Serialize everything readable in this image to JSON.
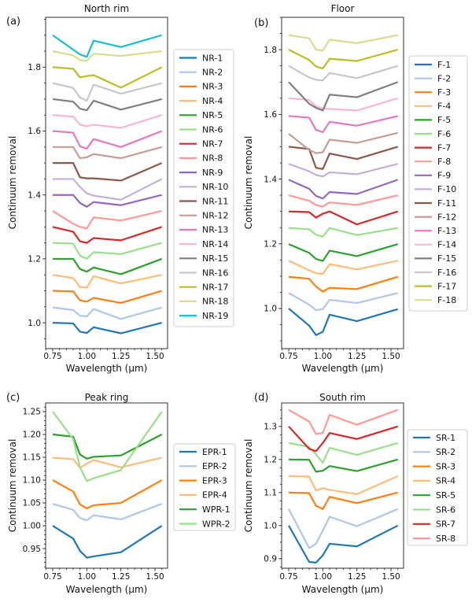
{
  "chart_data": [
    {
      "id": "a",
      "type": "line",
      "panel_label": "(a)",
      "title": "North rim",
      "xlabel": "Wavelength (μm)",
      "ylabel": "Continuum removal",
      "x": [
        0.75,
        0.9,
        0.95,
        1.0,
        1.05,
        1.25,
        1.55
      ],
      "xlim": [
        0.698,
        1.592
      ],
      "ylim": [
        0.919,
        1.956
      ],
      "xticks": [
        0.75,
        1.0,
        1.25,
        1.5
      ],
      "xtick_labels": [
        "0.75",
        "1.00",
        "1.25",
        "1.50"
      ],
      "yticks": [
        1.0,
        1.2,
        1.4,
        1.6,
        1.8
      ],
      "ytick_labels": [
        "1.0",
        "1.2",
        "1.4",
        "1.6",
        "1.8"
      ],
      "grid": false,
      "legend_position": "right",
      "series": [
        {
          "name": "NR-1",
          "color": "#1f77b4",
          "values": [
            1.0,
            0.998,
            0.972,
            0.968,
            0.986,
            0.967,
            1.0
          ]
        },
        {
          "name": "NR-2",
          "color": "#aec7e8",
          "values": [
            1.048,
            1.04,
            1.022,
            1.02,
            1.043,
            1.012,
            1.048
          ]
        },
        {
          "name": "NR-3",
          "color": "#ff7f0e",
          "values": [
            1.1,
            1.098,
            1.07,
            1.066,
            1.078,
            1.062,
            1.1
          ]
        },
        {
          "name": "NR-4",
          "color": "#ffbb78",
          "values": [
            1.15,
            1.14,
            1.112,
            1.11,
            1.146,
            1.123,
            1.15
          ]
        },
        {
          "name": "NR-5",
          "color": "#2ca02c",
          "values": [
            1.2,
            1.2,
            1.168,
            1.16,
            1.173,
            1.152,
            1.2
          ]
        },
        {
          "name": "NR-6",
          "color": "#98df8a",
          "values": [
            1.25,
            1.248,
            1.21,
            1.2,
            1.221,
            1.215,
            1.25
          ]
        },
        {
          "name": "NR-7",
          "color": "#d62728",
          "values": [
            1.3,
            1.285,
            1.255,
            1.25,
            1.265,
            1.258,
            1.3
          ]
        },
        {
          "name": "NR-8",
          "color": "#ff9896",
          "values": [
            1.35,
            1.31,
            1.3,
            1.295,
            1.33,
            1.32,
            1.35
          ]
        },
        {
          "name": "NR-9",
          "color": "#9467bd",
          "values": [
            1.4,
            1.4,
            1.375,
            1.363,
            1.378,
            1.368,
            1.4
          ]
        },
        {
          "name": "NR-10",
          "color": "#c5b0d5",
          "values": [
            1.45,
            1.45,
            1.425,
            1.405,
            1.398,
            1.385,
            1.45
          ]
        },
        {
          "name": "NR-11",
          "color": "#8c564b",
          "values": [
            1.5,
            1.5,
            1.455,
            1.452,
            1.452,
            1.445,
            1.5
          ]
        },
        {
          "name": "NR-12",
          "color": "#c49c94",
          "values": [
            1.55,
            1.55,
            1.515,
            1.518,
            1.528,
            1.515,
            1.55
          ]
        },
        {
          "name": "NR-13",
          "color": "#e377c2",
          "values": [
            1.6,
            1.595,
            1.552,
            1.545,
            1.575,
            1.55,
            1.6
          ]
        },
        {
          "name": "NR-14",
          "color": "#f7b6d2",
          "values": [
            1.65,
            1.645,
            1.62,
            1.615,
            1.62,
            1.61,
            1.65
          ]
        },
        {
          "name": "NR-15",
          "color": "#7f7f7f",
          "values": [
            1.7,
            1.692,
            1.67,
            1.665,
            1.695,
            1.667,
            1.7
          ]
        },
        {
          "name": "NR-16",
          "color": "#c7c7c7",
          "values": [
            1.75,
            1.735,
            1.705,
            1.695,
            1.745,
            1.717,
            1.75
          ]
        },
        {
          "name": "NR-17",
          "color": "#bcbd22",
          "values": [
            1.8,
            1.795,
            1.768,
            1.772,
            1.775,
            1.736,
            1.8
          ]
        },
        {
          "name": "NR-18",
          "color": "#dbdb8d",
          "values": [
            1.85,
            1.837,
            1.822,
            1.82,
            1.842,
            1.835,
            1.85
          ]
        },
        {
          "name": "NR-19",
          "color": "#17becf",
          "values": [
            1.9,
            1.855,
            1.84,
            1.832,
            1.883,
            1.863,
            1.9
          ]
        }
      ]
    },
    {
      "id": "b",
      "type": "line",
      "panel_label": "(b)",
      "title": "Floor",
      "xlabel": "Wavelength (μm)",
      "ylabel": "Continuum removal",
      "x": [
        0.75,
        0.9,
        0.95,
        1.0,
        1.05,
        1.25,
        1.55
      ],
      "xlim": [
        0.698,
        1.592
      ],
      "ylim": [
        0.876,
        1.9
      ],
      "xticks": [
        0.75,
        1.0,
        1.25,
        1.5
      ],
      "xtick_labels": [
        "0.75",
        "1.00",
        "1.25",
        "1.50"
      ],
      "yticks": [
        1.0,
        1.2,
        1.4,
        1.6,
        1.8
      ],
      "ytick_labels": [
        "1.0",
        "1.2",
        "1.4",
        "1.6",
        "1.8"
      ],
      "grid": false,
      "legend_position": "right",
      "series": [
        {
          "name": "F-1",
          "color": "#1f77b4",
          "values": [
            1.0,
            0.947,
            0.918,
            0.928,
            0.981,
            0.961,
            0.998
          ]
        },
        {
          "name": "F-2",
          "color": "#aec7e8",
          "values": [
            1.048,
            1.012,
            0.995,
            0.998,
            1.027,
            1.017,
            1.048
          ]
        },
        {
          "name": "F-3",
          "color": "#ff7f0e",
          "values": [
            1.098,
            1.092,
            1.068,
            1.052,
            1.064,
            1.06,
            1.098
          ]
        },
        {
          "name": "F-4",
          "color": "#ffbb78",
          "values": [
            1.148,
            1.118,
            1.109,
            1.107,
            1.137,
            1.121,
            1.148
          ]
        },
        {
          "name": "F-5",
          "color": "#2ca02c",
          "values": [
            1.199,
            1.172,
            1.153,
            1.147,
            1.179,
            1.162,
            1.199
          ]
        },
        {
          "name": "F-6",
          "color": "#98df8a",
          "values": [
            1.249,
            1.245,
            1.228,
            1.222,
            1.249,
            1.227,
            1.249
          ]
        },
        {
          "name": "F-7",
          "color": "#d62728",
          "values": [
            1.3,
            1.298,
            1.281,
            1.293,
            1.3,
            1.26,
            1.3
          ]
        },
        {
          "name": "F-8",
          "color": "#ff9896",
          "values": [
            1.35,
            1.333,
            1.32,
            1.315,
            1.328,
            1.32,
            1.35
          ]
        },
        {
          "name": "F-9",
          "color": "#9467bd",
          "values": [
            1.398,
            1.37,
            1.348,
            1.34,
            1.36,
            1.354,
            1.398
          ]
        },
        {
          "name": "F-10",
          "color": "#c5b0d5",
          "values": [
            1.447,
            1.424,
            1.413,
            1.408,
            1.421,
            1.415,
            1.447
          ]
        },
        {
          "name": "F-11",
          "color": "#8c564b",
          "values": [
            1.5,
            1.493,
            1.435,
            1.431,
            1.479,
            1.462,
            1.5
          ]
        },
        {
          "name": "F-12",
          "color": "#c49c94",
          "values": [
            1.54,
            1.49,
            1.48,
            1.483,
            1.522,
            1.512,
            1.543
          ]
        },
        {
          "name": "F-13",
          "color": "#e377c2",
          "values": [
            1.595,
            1.59,
            1.552,
            1.545,
            1.577,
            1.565,
            1.595
          ]
        },
        {
          "name": "F-14",
          "color": "#f7b6d2",
          "values": [
            1.65,
            1.645,
            1.625,
            1.618,
            1.617,
            1.612,
            1.65
          ]
        },
        {
          "name": "F-15",
          "color": "#7f7f7f",
          "values": [
            1.7,
            1.633,
            1.62,
            1.612,
            1.661,
            1.653,
            1.7
          ]
        },
        {
          "name": "F-16",
          "color": "#c7c7c7",
          "values": [
            1.75,
            1.714,
            1.707,
            1.705,
            1.728,
            1.712,
            1.75
          ]
        },
        {
          "name": "F-17",
          "color": "#bcbd22",
          "values": [
            1.8,
            1.768,
            1.748,
            1.742,
            1.772,
            1.765,
            1.8
          ]
        },
        {
          "name": "F-18",
          "color": "#dbdb8d",
          "values": [
            1.845,
            1.835,
            1.8,
            1.797,
            1.831,
            1.82,
            1.845
          ]
        }
      ]
    },
    {
      "id": "c",
      "type": "line",
      "panel_label": "(c)",
      "title": "Peak ring",
      "xlabel": "Wavelength (μm)",
      "ylabel": "Continuum removal",
      "x": [
        0.75,
        0.9,
        0.95,
        1.0,
        1.05,
        1.25,
        1.55
      ],
      "xlim": [
        0.698,
        1.592
      ],
      "ylim": [
        0.907,
        1.269
      ],
      "xticks": [
        0.75,
        1.0,
        1.25,
        1.5
      ],
      "xtick_labels": [
        "0.75",
        "1.00",
        "1.25",
        "1.50"
      ],
      "yticks": [
        0.95,
        1.0,
        1.05,
        1.1,
        1.15,
        1.2,
        1.25
      ],
      "ytick_labels": [
        "0.95",
        "1.00",
        "1.05",
        "1.10",
        "1.15",
        "1.20",
        "1.25"
      ],
      "grid": false,
      "legend_position": "right",
      "series": [
        {
          "name": "EPR-1",
          "color": "#1f77b4",
          "values": [
            1.0,
            0.972,
            0.945,
            0.93,
            0.933,
            0.942,
            1.0
          ]
        },
        {
          "name": "EPR-2",
          "color": "#aec7e8",
          "values": [
            1.048,
            1.035,
            1.017,
            1.012,
            1.023,
            1.014,
            1.048
          ]
        },
        {
          "name": "EPR-3",
          "color": "#ff7f0e",
          "values": [
            1.1,
            1.075,
            1.047,
            1.038,
            1.045,
            1.05,
            1.1
          ]
        },
        {
          "name": "EPR-4",
          "color": "#ffbb78",
          "values": [
            1.149,
            1.146,
            1.127,
            1.136,
            1.144,
            1.128,
            1.149
          ]
        },
        {
          "name": "WPR-1",
          "color": "#2ca02c",
          "values": [
            1.2,
            1.195,
            1.156,
            1.147,
            1.151,
            1.154,
            1.2
          ]
        },
        {
          "name": "WPR-2",
          "color": "#98df8a",
          "values": [
            1.25,
            1.19,
            1.128,
            1.098,
            1.104,
            1.122,
            1.25
          ]
        }
      ]
    },
    {
      "id": "d",
      "type": "line",
      "panel_label": "(d)",
      "title": "South rim",
      "xlabel": "Wavelength (μm)",
      "ylabel": "Continuum removal",
      "x": [
        0.75,
        0.9,
        0.95,
        1.0,
        1.05,
        1.25,
        1.55
      ],
      "xlim": [
        0.698,
        1.592
      ],
      "ylim": [
        0.871,
        1.371
      ],
      "xticks": [
        0.75,
        1.0,
        1.25,
        1.5
      ],
      "xtick_labels": [
        "0.75",
        "1.00",
        "1.25",
        "1.50"
      ],
      "yticks": [
        0.9,
        1.0,
        1.1,
        1.2,
        1.3
      ],
      "ytick_labels": [
        "0.9",
        "1.0",
        "1.1",
        "1.2",
        "1.3"
      ],
      "grid": false,
      "legend_position": "right",
      "series": [
        {
          "name": "SR-1",
          "color": "#1f77b4",
          "values": [
            1.0,
            0.89,
            0.888,
            0.91,
            0.945,
            0.937,
            1.0
          ]
        },
        {
          "name": "SR-2",
          "color": "#aec7e8",
          "values": [
            1.05,
            0.932,
            0.945,
            0.985,
            1.027,
            0.998,
            1.05
          ]
        },
        {
          "name": "SR-3",
          "color": "#ff7f0e",
          "values": [
            1.1,
            1.098,
            1.06,
            1.05,
            1.087,
            1.068,
            1.1
          ]
        },
        {
          "name": "SR-4",
          "color": "#ffbb78",
          "values": [
            1.15,
            1.148,
            1.106,
            1.113,
            1.108,
            1.095,
            1.15
          ]
        },
        {
          "name": "SR-5",
          "color": "#2ca02c",
          "values": [
            1.2,
            1.199,
            1.163,
            1.166,
            1.18,
            1.165,
            1.2
          ]
        },
        {
          "name": "SR-6",
          "color": "#98df8a",
          "values": [
            1.25,
            1.238,
            1.215,
            1.19,
            1.235,
            1.214,
            1.25
          ]
        },
        {
          "name": "SR-7",
          "color": "#d62728",
          "values": [
            1.3,
            1.232,
            1.225,
            1.25,
            1.28,
            1.262,
            1.3
          ]
        },
        {
          "name": "SR-8",
          "color": "#ff9896",
          "values": [
            1.35,
            1.315,
            1.277,
            1.28,
            1.335,
            1.305,
            1.35
          ]
        }
      ]
    }
  ]
}
